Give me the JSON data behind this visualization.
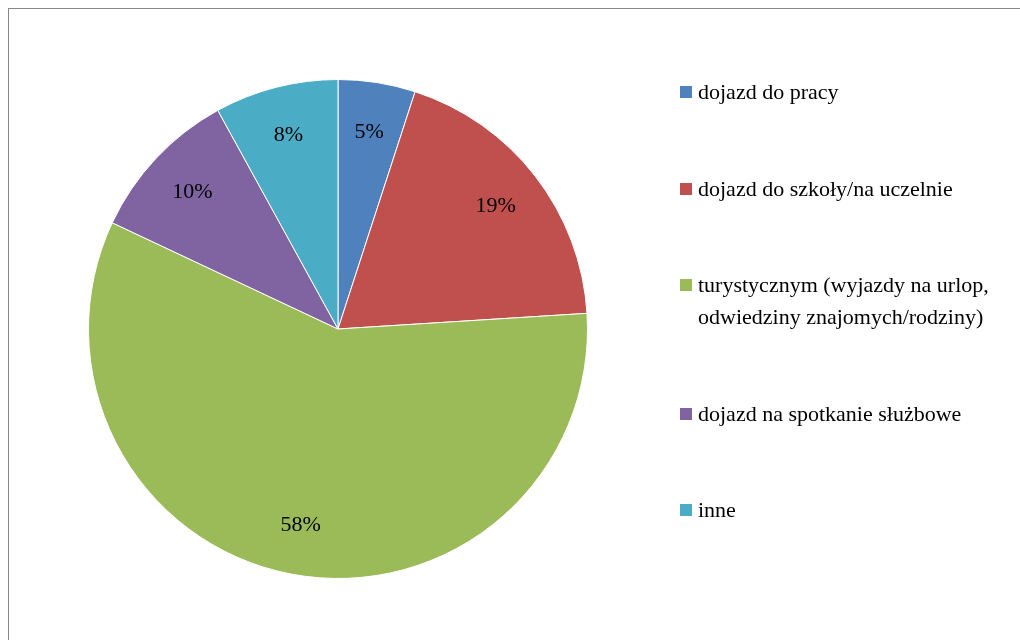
{
  "chart_data": {
    "type": "pie",
    "categories": [
      "dojazd do pracy",
      "dojazd do szkoły/na uczelnie",
      "turystycznym (wyjazdy na urlop, odwiedziny znajomych/rodziny)",
      "dojazd na spotkanie służbowe",
      "inne"
    ],
    "values": [
      5,
      19,
      58,
      10,
      8
    ],
    "colors": [
      "#4f81bd",
      "#c0504d",
      "#9bbb59",
      "#8064a2",
      "#4bacc6"
    ],
    "value_labels": [
      "5%",
      "19%",
      "58%",
      "10%",
      "8%"
    ],
    "legend": "right"
  }
}
